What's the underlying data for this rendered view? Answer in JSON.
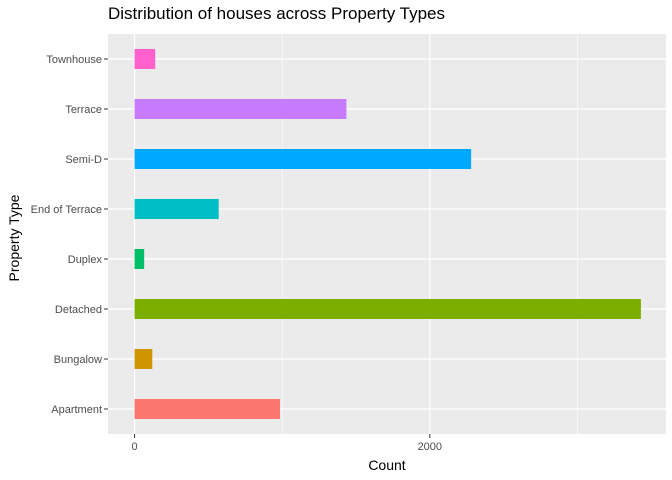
{
  "chart_data": {
    "type": "bar",
    "orientation": "horizontal",
    "title": "Distribution of houses across Property Types",
    "xlabel": "Count",
    "ylabel": "Property Type",
    "categories": [
      "Apartment",
      "Bungalow",
      "Detached",
      "Duplex",
      "End of Terrace",
      "Semi-D",
      "Terrace",
      "Townhouse"
    ],
    "values": [
      985,
      120,
      3430,
      65,
      570,
      2280,
      1435,
      140
    ],
    "colors": [
      "#F8766D",
      "#CD9600",
      "#7CAE00",
      "#00BE67",
      "#00BFC4",
      "#00A9FF",
      "#C77CFF",
      "#FF61CC"
    ],
    "xlim": [
      -180,
      3600
    ],
    "x_ticks": [
      0,
      2000
    ],
    "x_minor_gridlines": [
      1000,
      3000
    ],
    "grid": true,
    "legend": "none",
    "panel_background": "#EBEBEB"
  }
}
